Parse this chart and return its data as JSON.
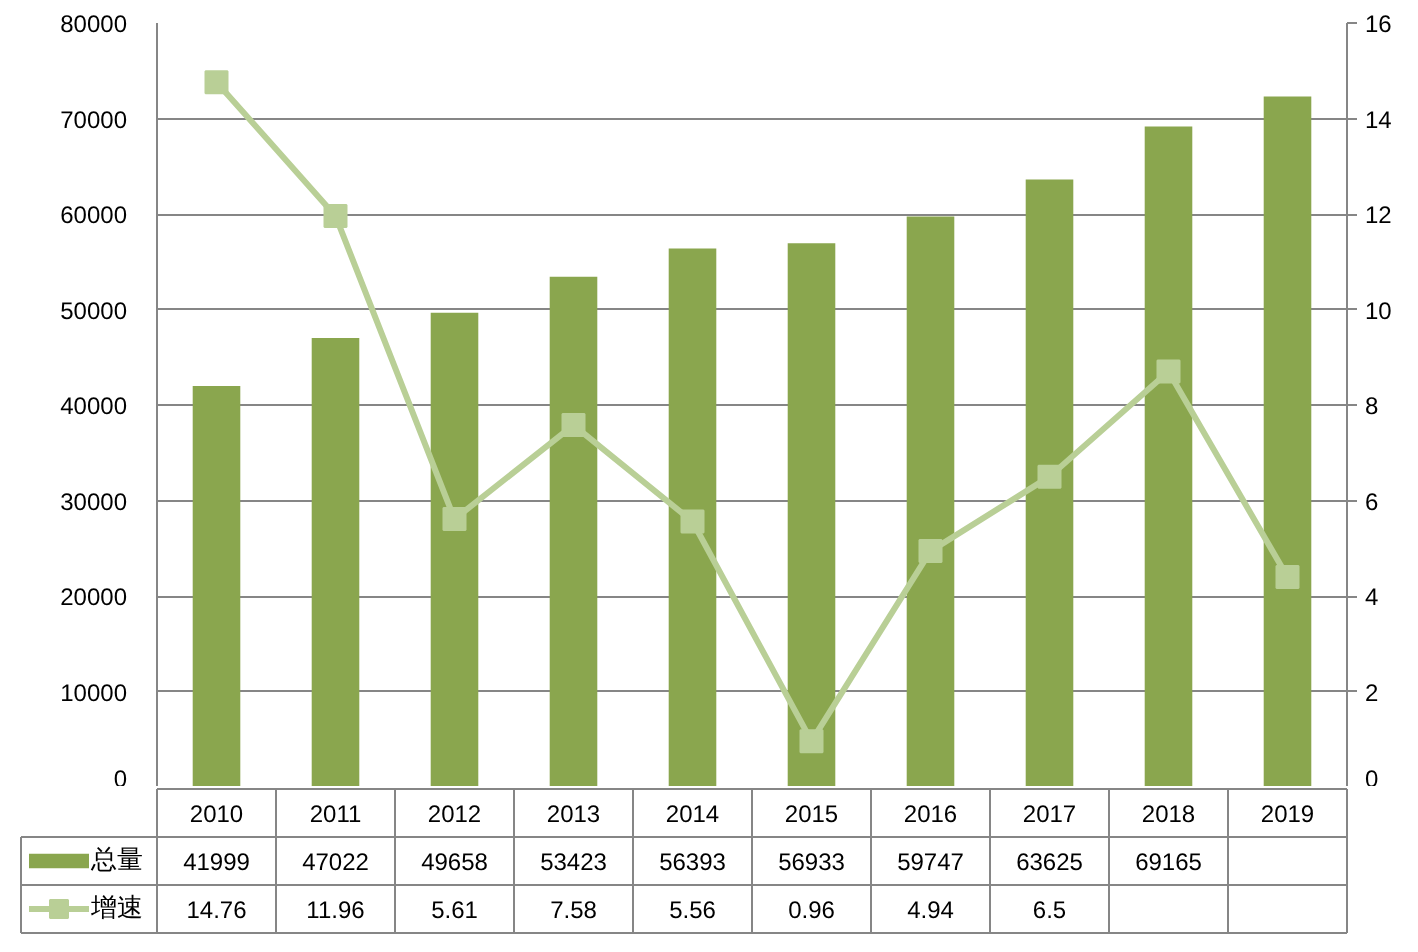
{
  "chart_data": {
    "type": "bar",
    "categories": [
      "2010",
      "2011",
      "2012",
      "2013",
      "2014",
      "2015",
      "2016",
      "2017",
      "2018",
      "2019"
    ],
    "series": [
      {
        "name": "总量",
        "color": "#8aa64e",
        "values": [
          41999,
          47022,
          49658,
          53423,
          56393,
          56933,
          59747,
          63625,
          69165,
          72300
        ],
        "value_labels": [
          "41999",
          "47022",
          "49658",
          "53423",
          "56393",
          "56933",
          "59747",
          "63625",
          "69165",
          null
        ]
      },
      {
        "name": "增速",
        "type": "line",
        "axis": "y2",
        "color": "#b9cf96",
        "values": [
          14.76,
          11.96,
          5.61,
          7.58,
          5.56,
          0.96,
          4.94,
          6.5,
          8.7,
          4.4
        ],
        "value_labels": [
          "14.76",
          "11.96",
          "5.61",
          "7.58",
          "5.56",
          "0.96",
          "4.94",
          "6.5",
          null,
          null
        ]
      }
    ],
    "ylim": [
      0,
      80000
    ],
    "yticks": [
      0,
      10000,
      20000,
      30000,
      40000,
      50000,
      60000,
      70000,
      80000
    ],
    "y2lim": [
      0,
      16
    ],
    "y2ticks": [
      0,
      2,
      4,
      6,
      8,
      10,
      12,
      14,
      16
    ],
    "grid": "y",
    "legend": "bottom left",
    "marker": "square"
  }
}
